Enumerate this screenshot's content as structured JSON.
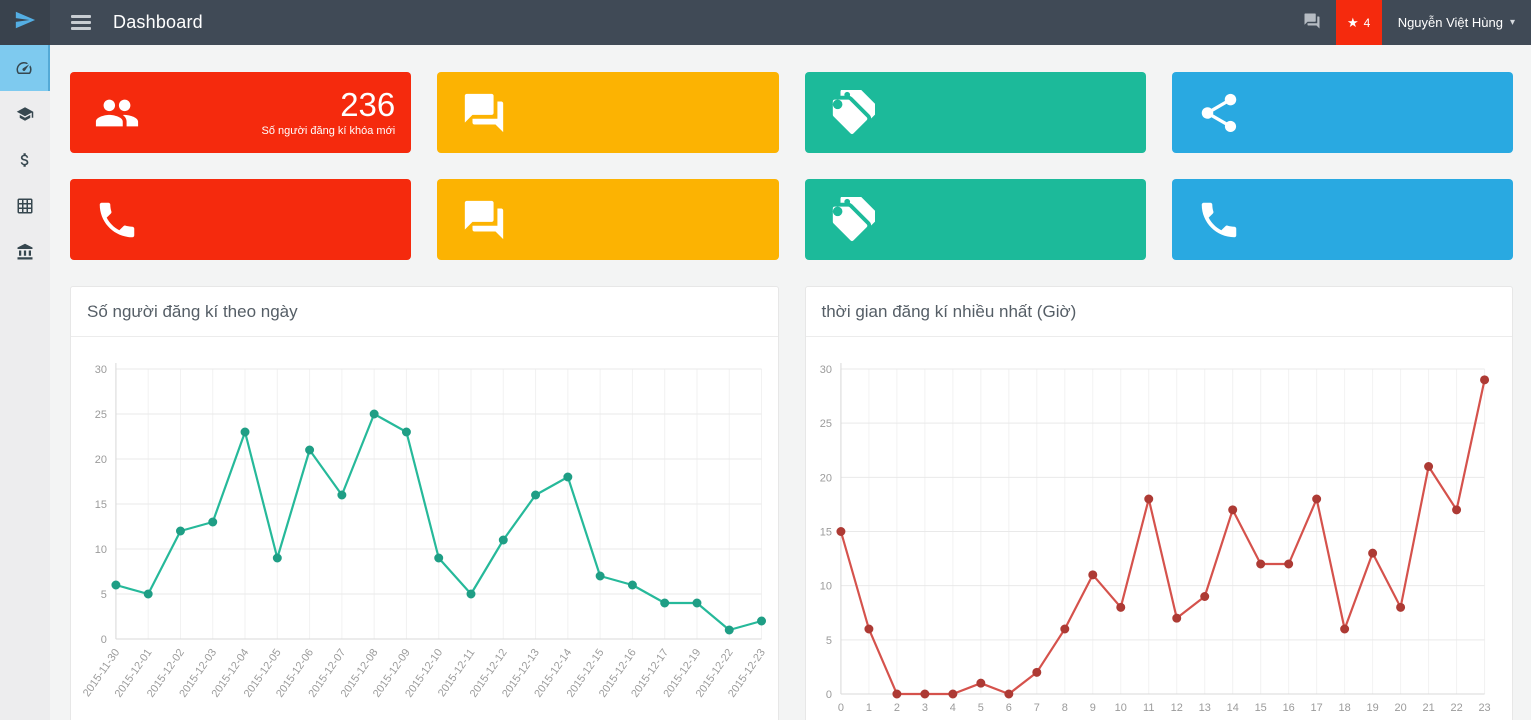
{
  "navbar": {
    "title": "Dashboard",
    "logo_icon": "paper-plane-icon",
    "menu_icon": "hamburger-icon",
    "messages_icon": "comments-icon",
    "badge_icon": "star-icon",
    "notification_count": "4",
    "user_name": "Nguyễn Việt Hùng"
  },
  "sidebar": {
    "items": [
      {
        "name": "dashboard",
        "icon": "tachometer",
        "active": true
      },
      {
        "name": "graduation-cap",
        "icon": "graduation-cap",
        "active": false
      },
      {
        "name": "dollar",
        "icon": "dollar",
        "active": false
      },
      {
        "name": "table",
        "icon": "table",
        "active": false
      },
      {
        "name": "bank",
        "icon": "bank",
        "active": false
      }
    ]
  },
  "cards": [
    {
      "icon": "users",
      "color": "#f52a0d",
      "value": "236",
      "label": "Số người đăng kí khóa mới"
    },
    {
      "icon": "comments",
      "color": "#fcb302"
    },
    {
      "icon": "tags",
      "color": "#1cba9a"
    },
    {
      "icon": "share",
      "color": "#29a9e1"
    },
    {
      "icon": "phone",
      "color": "#f52a0d"
    },
    {
      "icon": "comments",
      "color": "#fcb302"
    },
    {
      "icon": "tags",
      "color": "#1cba9a"
    },
    {
      "icon": "phone",
      "color": "#29a9e1"
    }
  ],
  "chart_data": [
    {
      "type": "line",
      "title": "Số người đăng kí theo ngày",
      "categories": [
        "2015-11-30",
        "2015-12-01",
        "2015-12-02",
        "2015-12-03",
        "2015-12-04",
        "2015-12-05",
        "2015-12-06",
        "2015-12-07",
        "2015-12-08",
        "2015-12-09",
        "2015-12-10",
        "2015-12-11",
        "2015-12-12",
        "2015-12-13",
        "2015-12-14",
        "2015-12-15",
        "2015-12-16",
        "2015-12-17",
        "2015-12-19",
        "2015-12-22",
        "2015-12-23"
      ],
      "values": [
        6,
        5,
        12,
        13,
        23,
        9,
        21,
        16,
        25,
        23,
        9,
        5,
        11,
        16,
        18,
        7,
        6,
        4,
        4,
        1,
        2
      ],
      "xlabel": "",
      "ylabel": "",
      "ylim": [
        0,
        30
      ],
      "yticks": [
        0,
        5,
        10,
        15,
        20,
        25,
        30
      ],
      "grid": true,
      "legend": "none",
      "line_color": "#26b99a",
      "point_color": "#1f9e85",
      "x_label_rotation": -55
    },
    {
      "type": "line",
      "title": "thời gian đăng kí nhiều nhất (Giờ)",
      "categories": [
        "0",
        "1",
        "2",
        "3",
        "4",
        "5",
        "6",
        "7",
        "8",
        "9",
        "10",
        "11",
        "12",
        "13",
        "14",
        "15",
        "16",
        "17",
        "18",
        "19",
        "20",
        "21",
        "22",
        "23"
      ],
      "values": [
        15,
        6,
        0,
        0,
        0,
        1,
        0,
        2,
        6,
        11,
        8,
        18,
        7,
        9,
        17,
        12,
        12,
        18,
        6,
        13,
        8,
        21,
        17,
        29
      ],
      "xlabel": "",
      "ylabel": "",
      "ylim": [
        0,
        30
      ],
      "yticks": [
        0,
        5,
        10,
        15,
        20,
        25,
        30
      ],
      "grid": true,
      "legend": "none",
      "line_color": "#d5524c",
      "point_color": "#ad3a34",
      "x_label_rotation": 0
    }
  ],
  "colors": {
    "navbar_bg": "#404a56",
    "logo_bg": "#39424d",
    "badge_bg": "#f52a0d",
    "sidebar_bg": "#ededee",
    "sidebar_active_bg": "#7ecaef",
    "page_bg": "#f3f4f4",
    "red": "#f52a0d",
    "yellow": "#fcb302",
    "teal": "#1cba9a",
    "blue": "#29a9e1"
  }
}
